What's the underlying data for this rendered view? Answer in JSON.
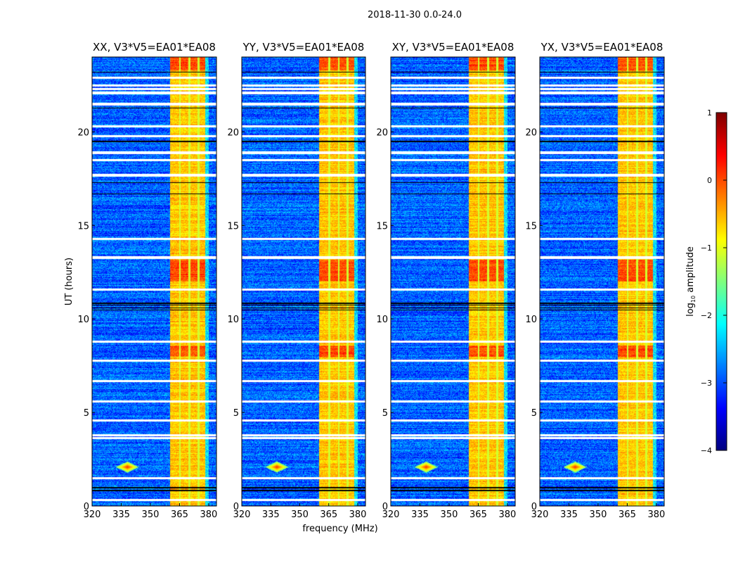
{
  "chart_data": {
    "type": "heatmap",
    "title": "2018-11-30 0.0-24.0",
    "xlabel": "frequency (MHz)",
    "ylabel": "UT (hours)",
    "xlim": [
      320,
      384
    ],
    "ylim": [
      0,
      24
    ],
    "xticks": [
      "320",
      "335",
      "350",
      "365",
      "380"
    ],
    "xtick_values": [
      320,
      335,
      350,
      365,
      380
    ],
    "yticks": [
      "0",
      "5",
      "10",
      "15",
      "20"
    ],
    "ytick_values": [
      0,
      5,
      10,
      15,
      20
    ],
    "panels": [
      {
        "title": "XX, V3*V5=EA01*EA08"
      },
      {
        "title": "YY, V3*V5=EA01*EA08"
      },
      {
        "title": "XY, V3*V5=EA01*EA08"
      },
      {
        "title": "YX, V3*V5=EA01*EA08"
      }
    ],
    "colorbar": {
      "label": "log10 amplitude",
      "label_main": "log",
      "label_sub": "10",
      "label_rest": " amplitude",
      "range": [
        -4,
        1
      ],
      "ticks": [
        "1",
        "0",
        "−1",
        "−2",
        "−3",
        "−4"
      ],
      "tick_values": [
        1,
        0,
        -1,
        -2,
        -3,
        -4
      ],
      "colormap": "jet"
    },
    "features": {
      "background_log_amp": -2.9,
      "bright_band_mhz": [
        360,
        378
      ],
      "bright_band_log_amp": -0.6,
      "band_gaps_mhz": [
        365,
        370,
        374.5
      ],
      "flagged_hours_white": [
        0.35,
        1.5,
        3.65,
        3.8,
        4.6,
        5.6,
        6.7,
        7.8,
        8.8,
        11.6,
        13.3,
        14.3,
        17.7,
        18.5,
        18.9,
        19.8,
        20.3,
        21.5,
        22.1,
        22.3,
        22.5,
        22.9
      ],
      "dark_lines_hours": [
        0.85,
        1.0,
        10.5,
        10.6,
        10.75,
        10.85,
        16.7,
        17.3,
        19.5,
        21.3,
        23.2
      ],
      "rfi_spike": {
        "freq_mhz": 338,
        "hour": 2.1
      }
    }
  }
}
